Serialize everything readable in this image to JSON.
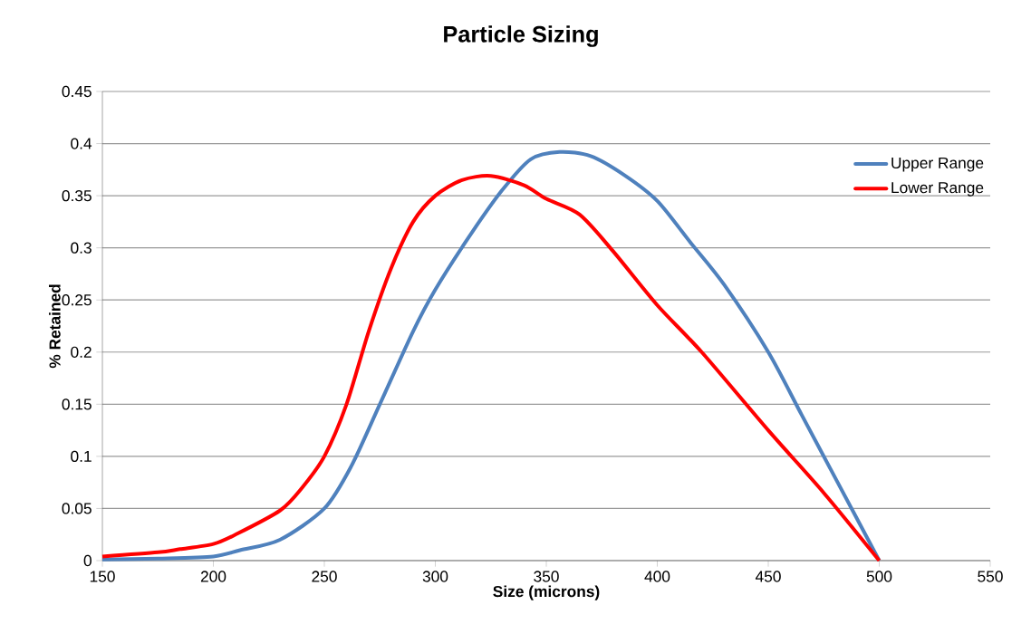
{
  "chart_data": {
    "type": "line",
    "title": "Particle Sizing",
    "xlabel": "Size (microns)",
    "ylabel": "% Retained",
    "xlim": [
      150,
      550
    ],
    "xticks": [
      150,
      200,
      250,
      300,
      350,
      400,
      450,
      500,
      550
    ],
    "ylim": [
      0,
      0.45
    ],
    "yticks": [
      0,
      0.05,
      0.1,
      0.15,
      0.2,
      0.25,
      0.3,
      0.35,
      0.4,
      0.45
    ],
    "grid": "y",
    "legend": "top right",
    "marker": "none",
    "line_style": "solid",
    "series": [
      {
        "name": "Upper Range",
        "color": "#4f81bd",
        "x": [
          150,
          175,
          200,
          212,
          230,
          250,
          262,
          275,
          290,
          300,
          315,
          330,
          343,
          356,
          370,
          385,
          400,
          415,
          430,
          450,
          465,
          480,
          500
        ],
        "values": [
          0.001,
          0.002,
          0.004,
          0.01,
          0.02,
          0.05,
          0.09,
          0.15,
          0.22,
          0.26,
          0.31,
          0.355,
          0.385,
          0.392,
          0.388,
          0.37,
          0.345,
          0.305,
          0.265,
          0.2,
          0.14,
          0.08,
          0
        ]
      },
      {
        "name": "Lower Range",
        "color": "#ff0000",
        "x": [
          150,
          175,
          185,
          200,
          210,
          230,
          240,
          250,
          260,
          270,
          280,
          290,
          300,
          312,
          325,
          340,
          350,
          365,
          380,
          400,
          420,
          450,
          475,
          500
        ],
        "values": [
          0.004,
          0.008,
          0.011,
          0.016,
          0.025,
          0.048,
          0.07,
          0.1,
          0.15,
          0.22,
          0.28,
          0.325,
          0.35,
          0.365,
          0.369,
          0.36,
          0.347,
          0.332,
          0.297,
          0.245,
          0.2,
          0.125,
          0.065,
          0
        ]
      }
    ]
  }
}
